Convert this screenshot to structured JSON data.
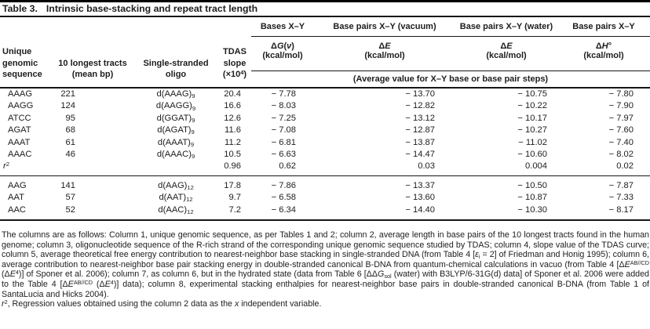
{
  "title": {
    "label": "Table 3.",
    "caption": "Intrinsic base-stacking and repeat tract length"
  },
  "header": {
    "col1_lines": [
      "Unique",
      "genomic",
      "sequence"
    ],
    "col2_lines": [
      "10 longest tracts",
      "(mean bp)"
    ],
    "col3_lines": [
      "Single-stranded",
      "oligo"
    ],
    "col4": {
      "lines": [
        "TDAS",
        "slope"
      ],
      "last": [
        {
          "t": "(×10"
        },
        {
          "t": "4",
          "sup": true
        },
        {
          "t": ")"
        }
      ]
    },
    "groups": [
      "Bases X–Y",
      "Base pairs X–Y (vacuum)",
      "Base pairs X–Y (water)",
      "Base pairs X–Y"
    ],
    "sub": [
      {
        "line1": [
          {
            "t": "Δ"
          },
          {
            "t": "G",
            "i": true
          },
          {
            "t": "("
          },
          {
            "t": "ν",
            "i": true
          },
          {
            "t": ")"
          }
        ],
        "line2": "(kcal/mol)"
      },
      {
        "line1": [
          {
            "t": "Δ"
          },
          {
            "t": "E",
            "i": true
          }
        ],
        "line2": "(kcal/mol)"
      },
      {
        "line1": [
          {
            "t": "Δ"
          },
          {
            "t": "E",
            "i": true
          }
        ],
        "line2": "(kcal/mol)"
      },
      {
        "line1": [
          {
            "t": "Δ"
          },
          {
            "t": "H",
            "i": true
          },
          {
            "t": "°"
          }
        ],
        "line2": "(kcal/mol)"
      }
    ],
    "avg_note": "(Average value for X–Y base or base pair steps)"
  },
  "rows_group1": [
    {
      "seq": "AAAG",
      "tracts": "221",
      "oligo": [
        {
          "t": "d(AAAG)"
        },
        {
          "t": "9",
          "sub": true
        }
      ],
      "slope": "20.4",
      "dg": "− 7.78",
      "de_vac": "− 13.70",
      "de_wat": "− 10.75",
      "dh": "− 7.80"
    },
    {
      "seq": "AAGG",
      "tracts": "124",
      "oligo": [
        {
          "t": "d(AAGG)"
        },
        {
          "t": "9",
          "sub": true
        }
      ],
      "slope": "16.6",
      "dg": "− 8.03",
      "de_vac": "− 12.82",
      "de_wat": "− 10.22",
      "dh": "− 7.90"
    },
    {
      "seq": "ATCC",
      "tracts": "95",
      "oligo": [
        {
          "t": "d(GGAT)"
        },
        {
          "t": "9",
          "sub": true
        }
      ],
      "slope": "12.6",
      "dg": "− 7.25",
      "de_vac": "− 13.12",
      "de_wat": "− 10.17",
      "dh": "− 7.97"
    },
    {
      "seq": "AGAT",
      "tracts": "68",
      "oligo": [
        {
          "t": "d(AGAT)"
        },
        {
          "t": "9",
          "sub": true
        }
      ],
      "slope": "11.6",
      "dg": "− 7.08",
      "de_vac": "− 12.87",
      "de_wat": "− 10.27",
      "dh": "− 7.60"
    },
    {
      "seq": "AAAT",
      "tracts": "61",
      "oligo": [
        {
          "t": "d(AAAT)"
        },
        {
          "t": "9",
          "sub": true
        }
      ],
      "slope": "11.2",
      "dg": "− 6.81",
      "de_vac": "− 13.87",
      "de_wat": "− 11.02",
      "dh": "− 7.40"
    },
    {
      "seq": "AAAC",
      "tracts": "46",
      "oligo": [
        {
          "t": "d(AAAC)"
        },
        {
          "t": "9",
          "sub": true
        }
      ],
      "slope": "10.5",
      "dg": "− 6.63",
      "de_vac": "− 14.47",
      "de_wat": "− 10.60",
      "dh": "− 8.02"
    },
    {
      "seq": [
        {
          "t": "r",
          "i": true
        },
        {
          "t": "2",
          "sup": true
        }
      ],
      "tracts": "",
      "oligo": "",
      "slope": "0.96",
      "dg": "0.62",
      "de_vac": "0.03",
      "de_wat": "0.004",
      "dh": "0.02"
    }
  ],
  "rows_group2": [
    {
      "seq": "AAG",
      "tracts": "141",
      "oligo": [
        {
          "t": "d(AAG)"
        },
        {
          "t": "12",
          "sub": true
        }
      ],
      "slope": "17.8",
      "dg": "− 7.86",
      "de_vac": "− 13.37",
      "de_wat": "− 10.50",
      "dh": "− 7.87"
    },
    {
      "seq": "AAT",
      "tracts": "57",
      "oligo": [
        {
          "t": "d(AAT)"
        },
        {
          "t": "12",
          "sub": true
        }
      ],
      "slope": "9.7",
      "dg": "− 6.58",
      "de_vac": "− 13.60",
      "de_wat": "− 10.87",
      "dh": "− 7.33"
    },
    {
      "seq": "AAC",
      "tracts": "52",
      "oligo": [
        {
          "t": "d(AAC)"
        },
        {
          "t": "12",
          "sub": true
        }
      ],
      "slope": "7.2",
      "dg": "− 6.34",
      "de_vac": "− 14.40",
      "de_wat": "− 10.30",
      "dh": "− 8.17"
    }
  ],
  "footnote1": [
    {
      "t": "The columns are as follows: Column 1, unique genomic sequence, as per Tables 1 and 2; column 2, average length in base pairs of the 10 longest tracts found in the human genome; column 3, oligonucleotide sequence of the R-rich strand of the corresponding unique genomic sequence studied by TDAS; column 4, slope value of the TDAS curve; column 5, average theoretical free energy contribution to nearest-neighbor base stacking in single-stranded DNA (from Table 4 ["
    },
    {
      "t": "ε",
      "i": true
    },
    {
      "t": "i",
      "sub": true
    },
    {
      "t": " = 2] of Friedman and Honig 1995); column 6, average contribution to nearest-neighbor base pair stacking energy in double-stranded canonical B-DNA from quantum-chemical calculations in vacuo (from Table 4 [Δ"
    },
    {
      "t": "E",
      "i": true
    },
    {
      "t": "AB//CD",
      "sup": true
    },
    {
      "t": " (Δ"
    },
    {
      "t": "E",
      "i": true
    },
    {
      "t": "4",
      "sup": true
    },
    {
      "t": ")] of Sponer et al. 2006); column 7, as column 6, but in the hydrated state (data from Table 6 [ΔΔ"
    },
    {
      "t": "G",
      "i": true
    },
    {
      "t": "sol",
      "sub": true
    },
    {
      "t": " (water) with B3LYP/6-31G(d) data] of Sponer et al. 2006 were added to the Table 4 [Δ"
    },
    {
      "t": "E",
      "i": true
    },
    {
      "t": "AB//CD",
      "sup": true
    },
    {
      "t": " (Δ"
    },
    {
      "t": "E",
      "i": true
    },
    {
      "t": "4",
      "sup": true
    },
    {
      "t": ")] data); column 8, experimental stacking enthalpies for nearest-neighbor base pairs in double-stranded canonical B-DNA (from Table 1 of SantaLucia and Hicks 2004)."
    }
  ],
  "footnote2": [
    {
      "t": "r",
      "i": true
    },
    {
      "t": "2",
      "sup": true
    },
    {
      "t": ", Regression values obtained using the column 2 data as the "
    },
    {
      "t": "x",
      "i": true
    },
    {
      "t": " independent variable."
    }
  ]
}
